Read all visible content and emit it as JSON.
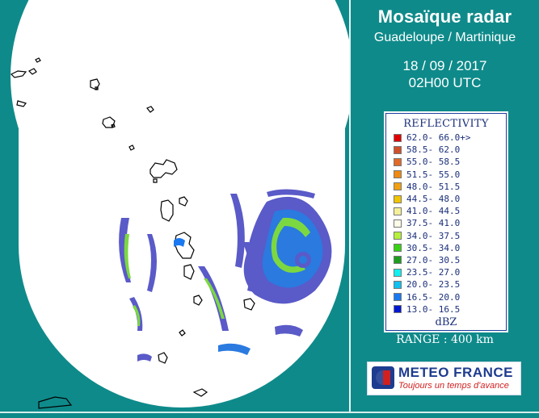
{
  "header": {
    "title": "Mosaïque radar",
    "subtitle": "Guadeloupe / Martinique",
    "date": "18 / 09 / 2017",
    "time": "02H00 UTC"
  },
  "legend": {
    "title": "REFLECTIVITY",
    "unit": "dBZ",
    "rows": [
      {
        "label": "62.0- 66.0+>",
        "color": "#e00000"
      },
      {
        "label": "58.5- 62.0",
        "color": "#d0502a"
      },
      {
        "label": "55.0- 58.5",
        "color": "#e06a28"
      },
      {
        "label": "51.5- 55.0",
        "color": "#ee8a10"
      },
      {
        "label": "48.0- 51.5",
        "color": "#f0a010"
      },
      {
        "label": "44.5- 48.0",
        "color": "#f0c400"
      },
      {
        "label": "41.0- 44.5",
        "color": "#f4f09a"
      },
      {
        "label": "37.5- 41.0",
        "color": "#fbfbe8"
      },
      {
        "label": "34.0- 37.5",
        "color": "#b4f03c"
      },
      {
        "label": "30.5- 34.0",
        "color": "#38d214"
      },
      {
        "label": "27.0- 30.5",
        "color": "#1e9e1e"
      },
      {
        "label": "23.5- 27.0",
        "color": "#10f0f0"
      },
      {
        "label": "20.0- 23.5",
        "color": "#10c0f0"
      },
      {
        "label": "16.5- 20.0",
        "color": "#1a78f0"
      },
      {
        "label": "13.0- 16.5",
        "color": "#0018d0"
      }
    ]
  },
  "range_text": "RANGE : 400 km",
  "logo": {
    "name": "METEO FRANCE",
    "tagline": "Toujours un temps d'avance"
  },
  "colors": {
    "background": "#0f8a8a",
    "coverage": "#ffffff",
    "echo_weak": "#5a5ac8",
    "echo_medium": "#2a7ae0",
    "echo_green": "#7cd840"
  }
}
